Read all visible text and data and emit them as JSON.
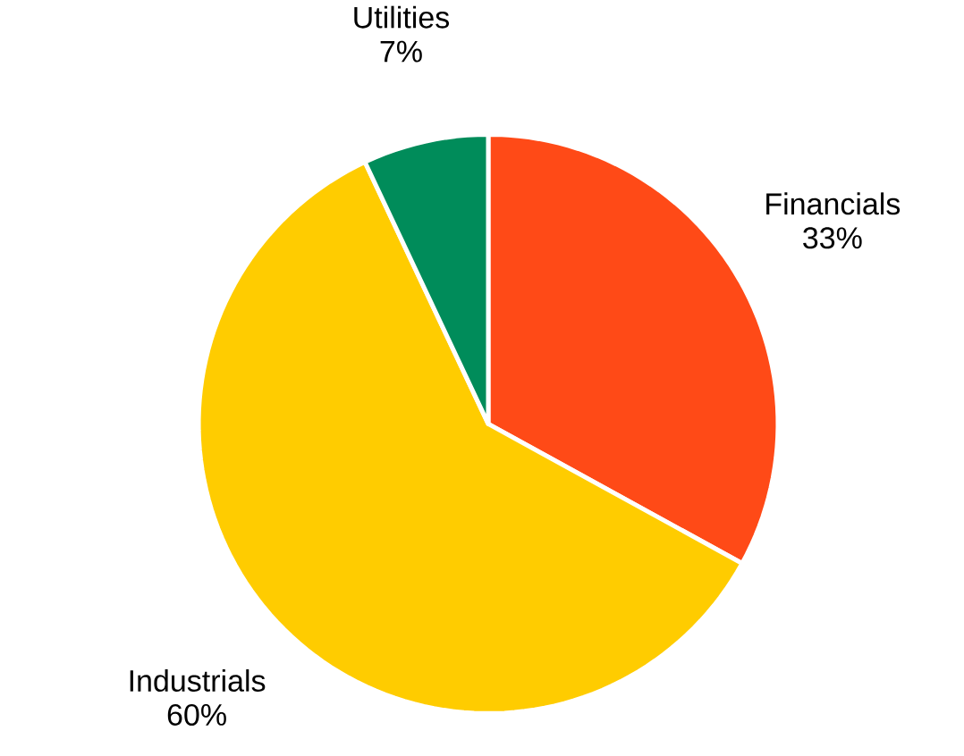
{
  "chart_data": {
    "type": "pie",
    "categories": [
      "Financials",
      "Industrials",
      "Utilities"
    ],
    "values": [
      33,
      60,
      7
    ],
    "value_labels": [
      "33%",
      "60%",
      "7%"
    ],
    "colors": [
      "#ff4a17",
      "#ffcc00",
      "#008c5a"
    ]
  }
}
